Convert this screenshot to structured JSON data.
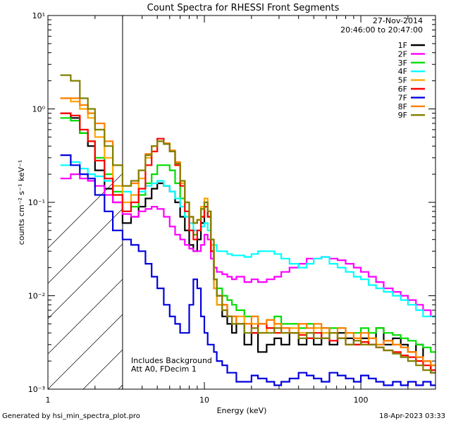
{
  "footer": {
    "generated_by": "Generated by hsi_min_spectra_plot.pro",
    "timestamp": "18-Apr-2023 03:33"
  },
  "chart_data": {
    "type": "line",
    "title": "Count Spectra for RHESSI Front Segments",
    "xlabel": "Energy (keV)",
    "ylabel": "counts cm⁻² s⁻¹ keV⁻¹",
    "xscale": "log",
    "yscale": "log",
    "xlim": [
      1,
      300
    ],
    "ylim": [
      0.001,
      10
    ],
    "x_ticks": [
      {
        "value": 1,
        "label": "1"
      },
      {
        "value": 10,
        "label": "10"
      },
      {
        "value": 100,
        "label": "100"
      }
    ],
    "y_ticks": [
      {
        "value": 10,
        "label": "10¹"
      },
      {
        "value": 1,
        "label": "10⁰"
      },
      {
        "value": 0.1,
        "label": "10⁻¹"
      },
      {
        "value": 0.01,
        "label": "10⁻²"
      },
      {
        "value": 0.001,
        "label": "10⁻³"
      }
    ],
    "date": "27-Nov-2014",
    "time_range": "20:46:00 to 20:47:00",
    "annotations": [
      "Includes Background",
      "Att A0, FDecim 1"
    ],
    "shaded_region_xmax": 3,
    "legend_position": "top-right",
    "energy_bins_keV": [
      1.2,
      1.4,
      1.6,
      1.8,
      2.0,
      2.3,
      2.6,
      3.0,
      3.4,
      3.8,
      4.2,
      4.6,
      5.0,
      5.5,
      6.0,
      6.5,
      7.0,
      7.5,
      8.0,
      8.5,
      9.0,
      9.5,
      10.0,
      10.5,
      11.0,
      11.5,
      12,
      13,
      14,
      15,
      16,
      18,
      20,
      22,
      25,
      28,
      31,
      35,
      40,
      45,
      50,
      56,
      63,
      71,
      80,
      90,
      100,
      112,
      125,
      140,
      160,
      180,
      200,
      225,
      250,
      280
    ],
    "series": [
      {
        "name": "1F",
        "color": "#000000",
        "values": [
          0.9,
          0.8,
          0.55,
          0.4,
          0.22,
          0.14,
          0.1,
          0.06,
          0.07,
          0.09,
          0.11,
          0.14,
          0.16,
          0.15,
          0.13,
          0.1,
          0.07,
          0.05,
          0.035,
          0.03,
          0.04,
          0.06,
          0.09,
          0.07,
          0.03,
          0.012,
          0.008,
          0.006,
          0.005,
          0.004,
          0.005,
          0.003,
          0.004,
          0.0025,
          0.003,
          0.0035,
          0.003,
          0.004,
          0.003,
          0.0035,
          0.003,
          0.0045,
          0.003,
          0.004,
          0.0035,
          0.003,
          0.0035,
          0.003,
          0.0045,
          0.003,
          0.0035,
          0.003,
          0.0025,
          0.003,
          0.002,
          0.0015
        ]
      },
      {
        "name": "2F",
        "color": "#ff00ff",
        "values": [
          0.18,
          0.2,
          0.18,
          0.17,
          0.15,
          0.12,
          0.1,
          0.075,
          0.07,
          0.08,
          0.085,
          0.09,
          0.085,
          0.07,
          0.055,
          0.045,
          0.04,
          0.035,
          0.032,
          0.03,
          0.03,
          0.035,
          0.045,
          0.04,
          0.025,
          0.02,
          0.018,
          0.017,
          0.016,
          0.015,
          0.016,
          0.014,
          0.015,
          0.014,
          0.015,
          0.016,
          0.018,
          0.02,
          0.022,
          0.025,
          0.025,
          0.026,
          0.025,
          0.024,
          0.022,
          0.02,
          0.018,
          0.016,
          0.014,
          0.012,
          0.011,
          0.01,
          0.009,
          0.008,
          0.007,
          0.006
        ]
      },
      {
        "name": "3F",
        "color": "#00dd00",
        "values": [
          0.8,
          0.75,
          0.55,
          0.45,
          0.3,
          0.2,
          0.13,
          0.08,
          0.09,
          0.12,
          0.16,
          0.2,
          0.25,
          0.25,
          0.22,
          0.16,
          0.11,
          0.07,
          0.05,
          0.045,
          0.05,
          0.07,
          0.09,
          0.07,
          0.035,
          0.015,
          0.012,
          0.01,
          0.009,
          0.008,
          0.007,
          0.006,
          0.006,
          0.005,
          0.0055,
          0.006,
          0.005,
          0.005,
          0.0045,
          0.005,
          0.0045,
          0.004,
          0.0045,
          0.0045,
          0.004,
          0.004,
          0.0045,
          0.004,
          0.0045,
          0.004,
          0.0038,
          0.0035,
          0.0033,
          0.003,
          0.0028,
          0.0025
        ]
      },
      {
        "name": "4F",
        "color": "#00ffff",
        "values": [
          0.25,
          0.27,
          0.23,
          0.2,
          0.19,
          0.17,
          0.15,
          0.13,
          0.12,
          0.13,
          0.15,
          0.16,
          0.17,
          0.15,
          0.13,
          0.11,
          0.09,
          0.07,
          0.06,
          0.05,
          0.05,
          0.055,
          0.06,
          0.05,
          0.04,
          0.035,
          0.03,
          0.03,
          0.028,
          0.027,
          0.027,
          0.026,
          0.028,
          0.03,
          0.03,
          0.028,
          0.025,
          0.022,
          0.02,
          0.022,
          0.025,
          0.026,
          0.022,
          0.02,
          0.018,
          0.016,
          0.015,
          0.013,
          0.012,
          0.011,
          0.01,
          0.009,
          0.008,
          0.007,
          0.006,
          0.006
        ]
      },
      {
        "name": "5F",
        "color": "#ffa500",
        "values": [
          1.3,
          1.2,
          1.0,
          0.8,
          0.5,
          0.3,
          0.15,
          0.1,
          0.12,
          0.18,
          0.3,
          0.4,
          0.45,
          0.43,
          0.35,
          0.25,
          0.16,
          0.1,
          0.07,
          0.06,
          0.065,
          0.09,
          0.11,
          0.08,
          0.035,
          0.012,
          0.008,
          0.007,
          0.006,
          0.005,
          0.006,
          0.005,
          0.005,
          0.004,
          0.0045,
          0.005,
          0.004,
          0.0045,
          0.004,
          0.004,
          0.0045,
          0.004,
          0.004,
          0.0035,
          0.004,
          0.0035,
          0.003,
          0.0035,
          0.003,
          0.0033,
          0.003,
          0.0028,
          0.0025,
          0.0022,
          0.002,
          0.0018
        ]
      },
      {
        "name": "6F",
        "color": "#ff0000",
        "values": [
          0.9,
          0.85,
          0.6,
          0.45,
          0.28,
          0.18,
          0.12,
          0.08,
          0.1,
          0.14,
          0.25,
          0.35,
          0.48,
          0.42,
          0.35,
          0.25,
          0.15,
          0.08,
          0.05,
          0.04,
          0.05,
          0.07,
          0.09,
          0.07,
          0.03,
          0.015,
          0.01,
          0.008,
          0.006,
          0.006,
          0.005,
          0.005,
          0.004,
          0.005,
          0.0045,
          0.004,
          0.0045,
          0.004,
          0.0038,
          0.0035,
          0.004,
          0.0035,
          0.0033,
          0.0035,
          0.003,
          0.003,
          0.0032,
          0.003,
          0.0028,
          0.0026,
          0.0025,
          0.0023,
          0.0022,
          0.002,
          0.0018,
          0.0016
        ]
      },
      {
        "name": "7F",
        "color": "#0000dd",
        "values": [
          0.32,
          0.25,
          0.2,
          0.18,
          0.12,
          0.08,
          0.05,
          0.04,
          0.035,
          0.03,
          0.022,
          0.016,
          0.012,
          0.008,
          0.006,
          0.005,
          0.004,
          0.004,
          0.008,
          0.015,
          0.012,
          0.006,
          0.004,
          0.003,
          0.003,
          0.0025,
          0.002,
          0.0018,
          0.0015,
          0.0015,
          0.0012,
          0.0012,
          0.0014,
          0.0013,
          0.0012,
          0.0011,
          0.0012,
          0.0013,
          0.0015,
          0.0014,
          0.0013,
          0.0012,
          0.0015,
          0.0014,
          0.0013,
          0.0012,
          0.0014,
          0.0013,
          0.0012,
          0.0011,
          0.0012,
          0.0011,
          0.0012,
          0.0011,
          0.0012,
          0.0011
        ]
      },
      {
        "name": "8F",
        "color": "#ff7f00",
        "values": [
          1.3,
          1.3,
          1.1,
          0.9,
          0.7,
          0.45,
          0.25,
          0.15,
          0.16,
          0.22,
          0.33,
          0.4,
          0.45,
          0.43,
          0.36,
          0.27,
          0.17,
          0.1,
          0.07,
          0.06,
          0.065,
          0.085,
          0.1,
          0.08,
          0.04,
          0.015,
          0.01,
          0.008,
          0.006,
          0.006,
          0.005,
          0.005,
          0.006,
          0.005,
          0.0055,
          0.005,
          0.0045,
          0.004,
          0.005,
          0.0045,
          0.005,
          0.0045,
          0.004,
          0.0045,
          0.004,
          0.0035,
          0.004,
          0.0035,
          0.003,
          0.0033,
          0.003,
          0.0028,
          0.0025,
          0.0022,
          0.002,
          0.0018
        ]
      },
      {
        "name": "9F",
        "color": "#808000",
        "values": [
          2.3,
          2.0,
          1.3,
          1.0,
          0.6,
          0.4,
          0.25,
          0.15,
          0.17,
          0.22,
          0.32,
          0.4,
          0.45,
          0.42,
          0.35,
          0.26,
          0.17,
          0.1,
          0.07,
          0.06,
          0.065,
          0.085,
          0.1,
          0.08,
          0.04,
          0.015,
          0.01,
          0.007,
          0.006,
          0.005,
          0.005,
          0.004,
          0.0045,
          0.004,
          0.004,
          0.0045,
          0.004,
          0.004,
          0.0035,
          0.004,
          0.0035,
          0.0035,
          0.004,
          0.0035,
          0.003,
          0.0033,
          0.003,
          0.003,
          0.0028,
          0.0026,
          0.0024,
          0.0022,
          0.002,
          0.0018,
          0.0016,
          0.0015
        ]
      }
    ]
  }
}
